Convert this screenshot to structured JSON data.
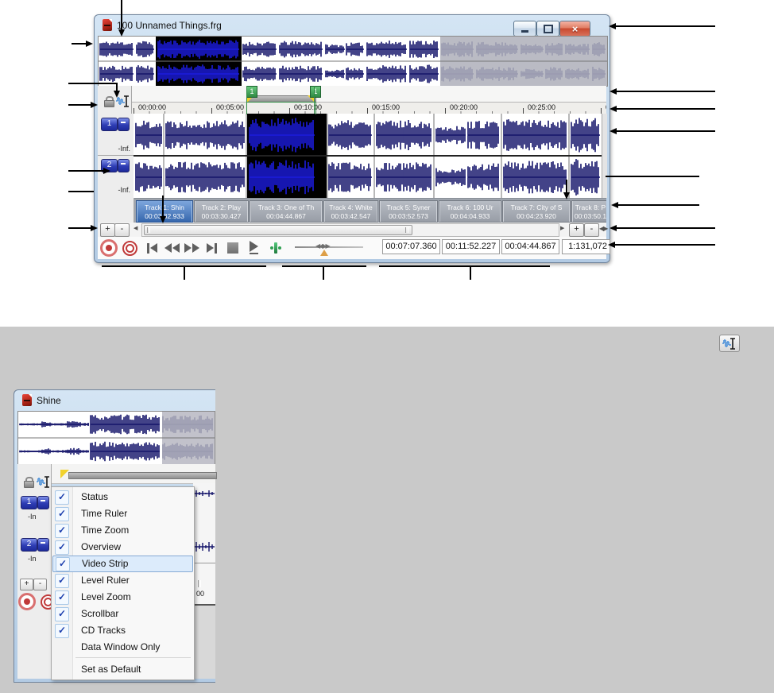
{
  "top_window": {
    "title": "100 Unnamed Things.frg",
    "controls": [
      "minimize",
      "restore-down",
      "close"
    ],
    "region_label": "1",
    "ruler_labels": [
      "00:00:00",
      "00:05:00",
      "00:10:00",
      "00:15:00",
      "00:20:00",
      "00:25:00",
      "00"
    ],
    "channels": [
      {
        "number": "1",
        "level": "-Inf."
      },
      {
        "number": "2",
        "level": "-Inf."
      }
    ],
    "zoom_plus": "+",
    "zoom_minus": "-",
    "cd_tracks": [
      {
        "name": "Track 1: Shin",
        "time": "00:03:32.933",
        "selected": true
      },
      {
        "name": "Track 2: Play",
        "time": "00:03:30.427",
        "selected": false
      },
      {
        "name": "Track 3: One of Th",
        "time": "00:04:44.867",
        "selected": false
      },
      {
        "name": "Track 4: White",
        "time": "00:03:42.547",
        "selected": false
      },
      {
        "name": "Track 5: Syner",
        "time": "00:03:52.573",
        "selected": false
      },
      {
        "name": "Track 6: 100 Ur",
        "time": "00:04:04.933",
        "selected": false
      },
      {
        "name": "Track 7: City of S",
        "time": "00:04:23.920",
        "selected": false
      },
      {
        "name": "Track 8: P",
        "time": "00:03:50.1",
        "selected": false
      }
    ],
    "status_values": [
      "00:07:07.360",
      "00:11:52.227",
      "00:04:44.867"
    ],
    "zoom_ratio": "1:131,072"
  },
  "bottom_window": {
    "title": "Shine",
    "channels": [
      {
        "number": "1",
        "level": "-In"
      },
      {
        "number": "2",
        "level": "-In"
      }
    ],
    "zoom_plus": "+",
    "zoom_minus": "-",
    "ruler_fragment": "00",
    "menu": {
      "items": [
        {
          "label": "Status",
          "checked": true
        },
        {
          "label": "Time Ruler",
          "checked": true
        },
        {
          "label": "Time Zoom",
          "checked": true
        },
        {
          "label": "Overview",
          "checked": true
        },
        {
          "label": "Video Strip",
          "checked": true,
          "highlighted": true
        },
        {
          "label": "Level Ruler",
          "checked": true
        },
        {
          "label": "Level Zoom",
          "checked": true
        },
        {
          "label": "Scrollbar",
          "checked": true
        },
        {
          "label": "CD Tracks",
          "checked": true
        },
        {
          "label": "Data Window Only",
          "checked": false
        },
        {
          "label": "Set as Default",
          "checked": false,
          "separator_before": true
        }
      ]
    }
  },
  "colors": {
    "waveform_navy": "#14146a",
    "selection_blue": "#1b1bdc",
    "selection_bg": "#000000",
    "grayed_wave": "#9a9bb0",
    "region_green": "#2f8b44",
    "marker_yellow": "#f2d22c",
    "close_red": "#c9492f"
  }
}
